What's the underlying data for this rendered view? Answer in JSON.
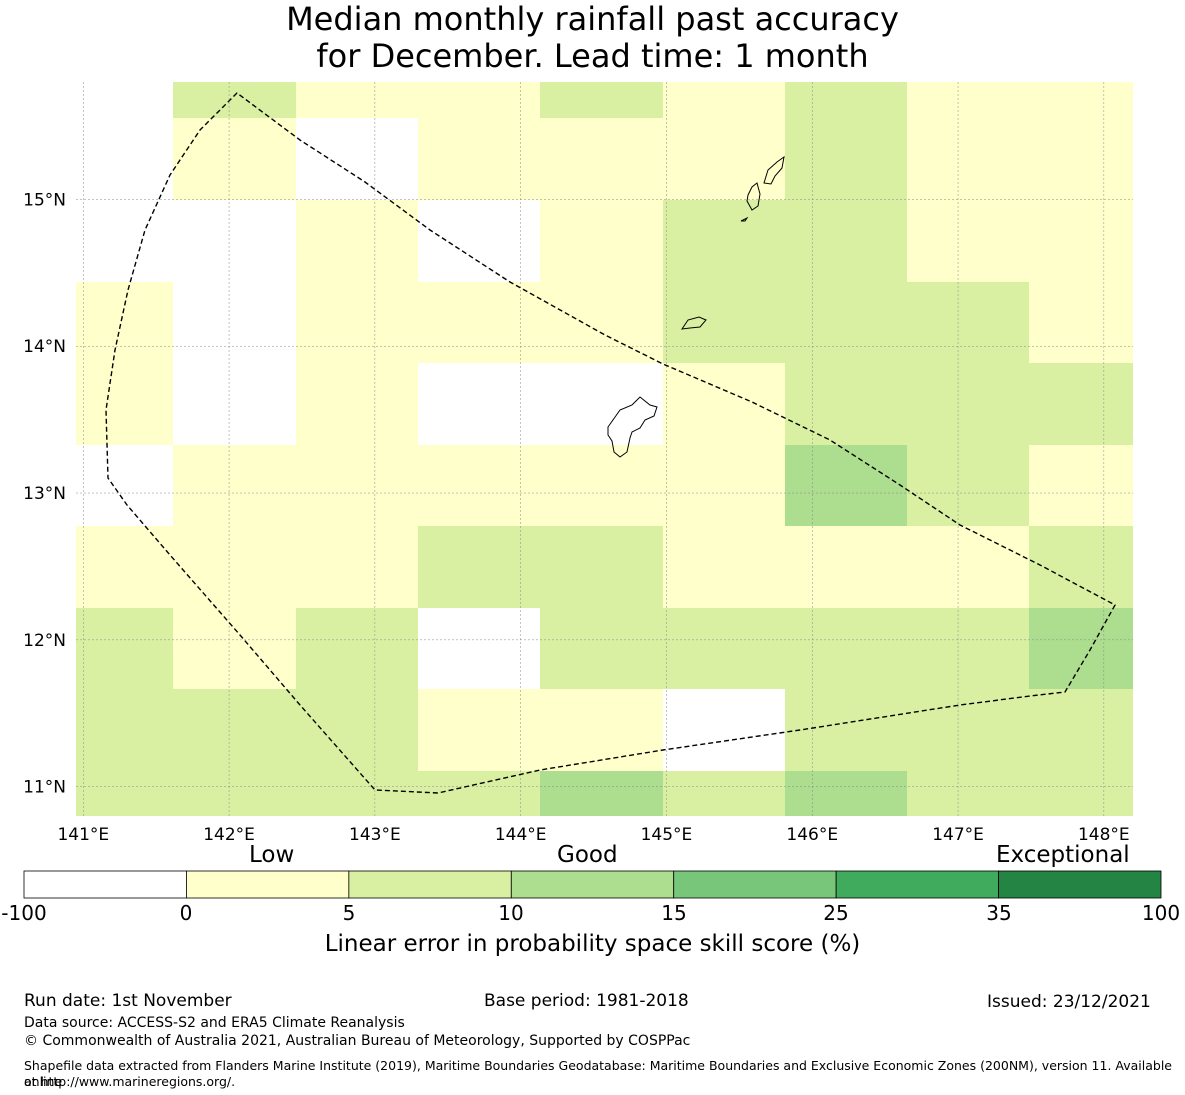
{
  "title_line1": "Median monthly rainfall past accuracy",
  "title_line2": "for December. Lead time: 1 month",
  "map": {
    "lon_range": [
      140.95,
      148.2
    ],
    "lat_range": [
      10.8,
      15.8
    ],
    "lon_ticks": [
      141,
      142,
      143,
      144,
      145,
      146,
      147,
      148
    ],
    "lon_tick_labels": [
      "141°E",
      "142°E",
      "143°E",
      "144°E",
      "145°E",
      "146°E",
      "147°E",
      "148°E"
    ],
    "lat_ticks": [
      15,
      14,
      13,
      12,
      11
    ],
    "lat_tick_labels": [
      "15°N",
      "14°N",
      "13°N",
      "12°N",
      "11°N"
    ],
    "category_colors": [
      "#ffffff",
      "#ffffcc",
      "#d9f0a3",
      "#addd8e",
      "#78c679",
      "#41ab5d",
      "#238443"
    ],
    "grid_cells_category_note": "rows from north to south; each row lists category index per grid column",
    "grid_rows": [
      [
        0,
        2,
        1,
        1,
        2,
        1,
        2,
        1,
        1
      ],
      [
        0,
        1,
        0,
        1,
        1,
        1,
        2,
        1,
        1
      ],
      [
        0,
        0,
        1,
        0,
        1,
        2,
        2,
        1,
        1
      ],
      [
        1,
        0,
        1,
        1,
        1,
        2,
        2,
        2,
        1
      ],
      [
        1,
        0,
        1,
        0,
        0,
        1,
        2,
        2,
        2
      ],
      [
        0,
        1,
        1,
        1,
        1,
        1,
        3,
        2,
        1
      ],
      [
        1,
        1,
        1,
        2,
        2,
        1,
        1,
        1,
        2
      ],
      [
        2,
        1,
        2,
        0,
        2,
        2,
        2,
        2,
        3
      ],
      [
        2,
        2,
        2,
        1,
        1,
        0,
        2,
        2,
        2
      ],
      [
        2,
        2,
        2,
        2,
        3,
        2,
        3,
        2,
        2
      ]
    ]
  },
  "colorbar": {
    "category_low": "Low",
    "category_good": "Good",
    "category_exceptional": "Exceptional",
    "colors": [
      "#ffffff",
      "#ffffcc",
      "#d9f0a3",
      "#addd8e",
      "#78c679",
      "#41ab5d",
      "#238443"
    ],
    "tick_labels": [
      "-100",
      "0",
      "5",
      "10",
      "15",
      "25",
      "35",
      "100"
    ],
    "label": "Linear error in probability space skill score (%)"
  },
  "footer": {
    "run_date": "Run date: 1st November",
    "base_period": "Base period: 1981-2018",
    "issued": "Issued: 23/12/2021",
    "data_source": "Data source: ACCESS-S2 and ERA5 Climate Reanalysis",
    "copyright": "© Commonwealth of Australia 2021, Australian Bureau of Meteorology, Supported by COSPPac",
    "shapefile_line1": "Shapefile data extracted from Flanders Marine Institute (2019), Maritime Boundaries Geodatabase: Maritime Boundaries and Exclusive Economic Zones (200NM), version 11. Available online",
    "shapefile_line2": "at http://www.marineregions.org/."
  }
}
